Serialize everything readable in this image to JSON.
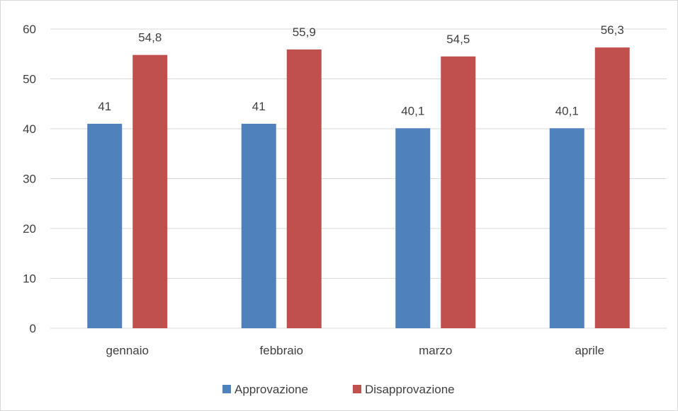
{
  "chart_data": {
    "type": "bar",
    "title": "",
    "xlabel": "",
    "ylabel": "",
    "categories": [
      "gennaio",
      "febbraio",
      "marzo",
      "aprile"
    ],
    "series": [
      {
        "name": "Approvazione",
        "values": [
          41,
          41,
          40.1,
          40.1
        ],
        "labels": [
          "41",
          "41",
          "40,1",
          "40,1"
        ],
        "color": "#4f81bd"
      },
      {
        "name": "Disapprovazione",
        "values": [
          54.8,
          55.9,
          54.5,
          56.3
        ],
        "labels": [
          "54,8",
          "55,9",
          "54,5",
          "56,3"
        ],
        "color": "#c0504d"
      }
    ],
    "ylim": [
      0,
      60
    ],
    "yticks": [
      0,
      10,
      20,
      30,
      40,
      50,
      60
    ],
    "grid": true,
    "legend_position": "bottom"
  }
}
